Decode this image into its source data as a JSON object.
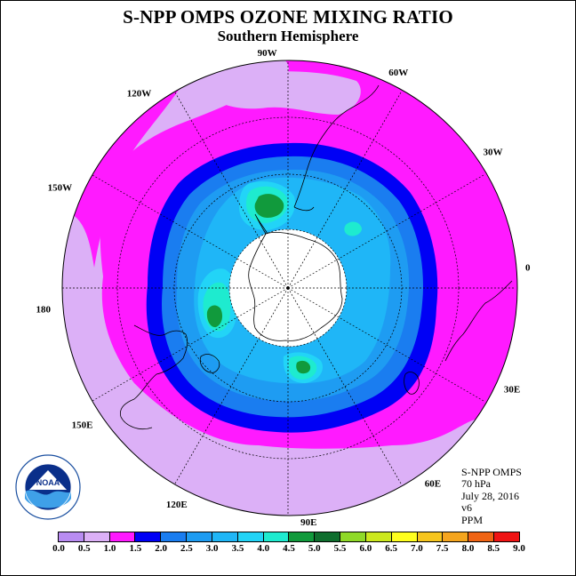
{
  "title": "S-NPP OMPS OZONE MIXING RATIO",
  "subtitle": "Southern Hemisphere",
  "info": {
    "instrument": "S-NPP OMPS",
    "level": "70 hPa",
    "date": "July 28, 2016",
    "version": "v6",
    "units": "PPM"
  },
  "logo": {
    "text": "NOAA",
    "icon": "noaa-logo-icon"
  },
  "map": {
    "projection": "south polar stereographic",
    "longitude_labels": [
      "90W",
      "60W",
      "30W",
      "0",
      "30E",
      "60E",
      "90E",
      "120E",
      "150E",
      "180",
      "150W",
      "120W"
    ]
  },
  "colorbar": {
    "ticks": [
      "0.0",
      "0.5",
      "1.0",
      "1.5",
      "2.0",
      "2.5",
      "3.0",
      "3.5",
      "4.0",
      "4.5",
      "5.0",
      "5.5",
      "6.0",
      "6.5",
      "7.0",
      "7.5",
      "8.0",
      "8.5",
      "9.0"
    ],
    "colors": [
      "#b98cf2",
      "#dcb0f7",
      "#ff1aff",
      "#0000f5",
      "#1a7df0",
      "#1e9cf2",
      "#1fb6f7",
      "#22d4f7",
      "#1eebcf",
      "#119a3c",
      "#0f6e2e",
      "#8fd928",
      "#cce81e",
      "#ffff1e",
      "#f6c51e",
      "#f5a51e",
      "#f06414",
      "#f01414",
      "#8a5a3c"
    ]
  }
}
